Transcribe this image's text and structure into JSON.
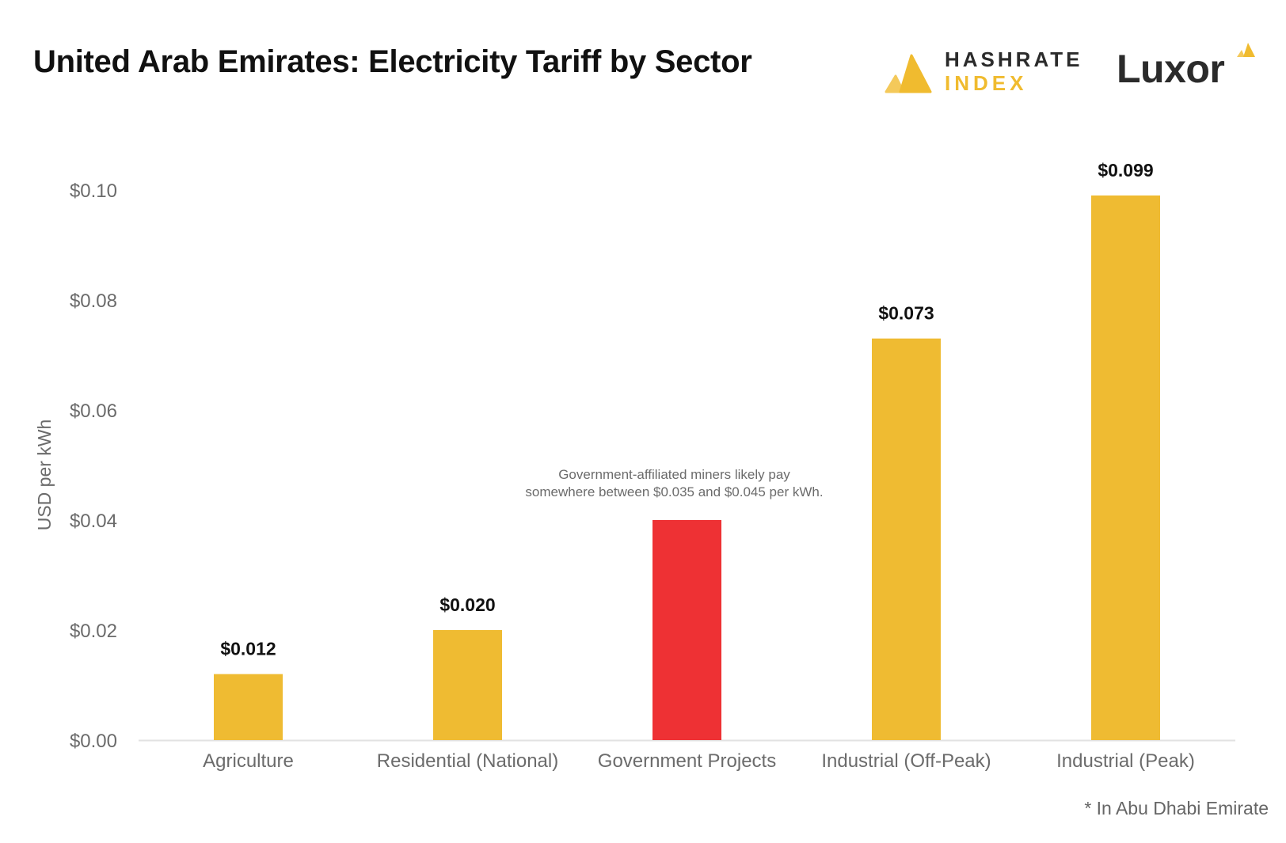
{
  "header": {
    "title": "United Arab Emirates: Electricity Tariff by Sector",
    "logo_hashrate_line1": "HASHRATE",
    "logo_hashrate_line2": "INDEX",
    "logo_luxor": "Luxor"
  },
  "colors": {
    "bar_default": "#efbb32",
    "bar_highlight": "#ee3134",
    "axis_text": "#6b6b6b",
    "label_text": "#111111"
  },
  "chart_data": {
    "type": "bar",
    "title": "United Arab Emirates: Electricity Tariff by Sector",
    "xlabel": "",
    "ylabel": "USD per kWh",
    "ylim": [
      0,
      0.1
    ],
    "yticks": [
      {
        "value": 0.0,
        "label": "$0.00"
      },
      {
        "value": 0.02,
        "label": "$0.02"
      },
      {
        "value": 0.04,
        "label": "$0.04"
      },
      {
        "value": 0.06,
        "label": "$0.06"
      },
      {
        "value": 0.08,
        "label": "$0.08"
      },
      {
        "value": 0.1,
        "label": "$0.10"
      }
    ],
    "grid": false,
    "categories": [
      "Agriculture",
      "Residential (National)",
      "Government Projects",
      "Industrial (Off-Peak)",
      "Industrial (Peak)"
    ],
    "values": [
      0.012,
      0.02,
      0.04,
      0.073,
      0.099
    ],
    "data_labels": [
      "$0.012",
      "$0.020",
      "",
      "$0.073",
      "$0.099"
    ],
    "highlight": [
      false,
      false,
      true,
      false,
      false
    ],
    "annotation": {
      "category": "Government Projects",
      "lines": [
        "Government-affiliated miners likely pay",
        "somewhere between $0.035 and $0.045 per kWh."
      ]
    }
  },
  "footnote": "* In Abu Dhabi Emirate"
}
